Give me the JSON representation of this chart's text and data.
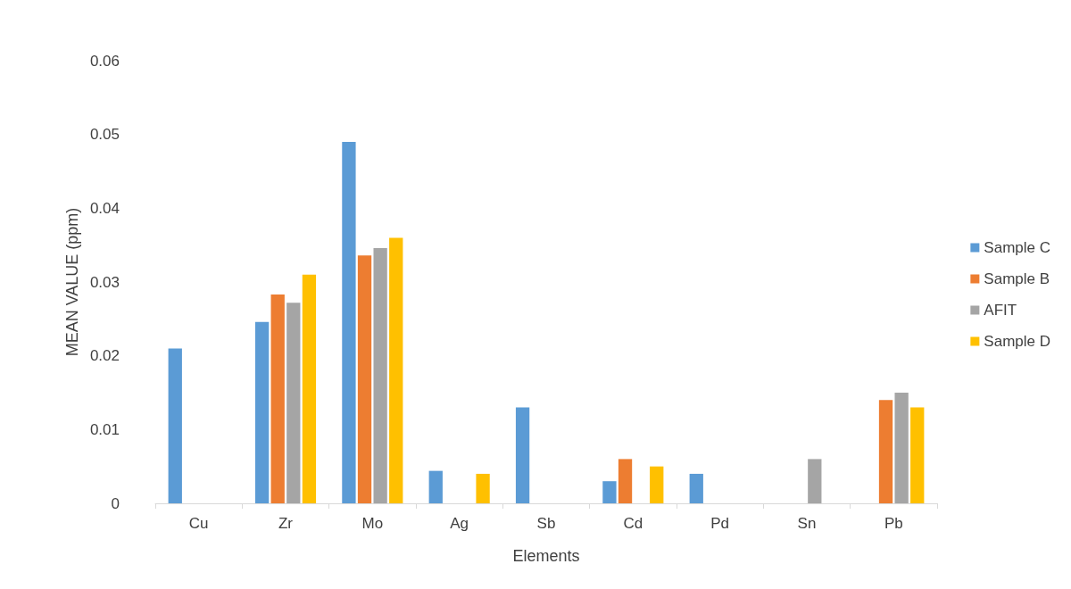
{
  "chart_data": {
    "type": "bar",
    "xlabel": "Elements",
    "ylabel": "MEAN VALUE (ppm)",
    "categories": [
      "Cu",
      "Zr",
      "Mo",
      "Ag",
      "Sb",
      "Cd",
      "Pd",
      "Sn",
      "Pb"
    ],
    "series": [
      {
        "name": "Sample C",
        "color": "#5b9bd5",
        "values": [
          0.021,
          0.0246,
          0.049,
          0.0044,
          0.013,
          0.003,
          0.004,
          null,
          null
        ]
      },
      {
        "name": "Sample B",
        "color": "#ed7d31",
        "values": [
          null,
          0.0283,
          0.0336,
          null,
          null,
          0.006,
          null,
          null,
          0.014
        ]
      },
      {
        "name": "AFIT",
        "color": "#a5a5a5",
        "values": [
          null,
          0.0272,
          0.0346,
          null,
          null,
          null,
          null,
          0.006,
          0.015
        ]
      },
      {
        "name": "Sample D",
        "color": "#ffc000",
        "values": [
          null,
          0.031,
          0.036,
          0.004,
          null,
          0.005,
          null,
          null,
          0.013
        ]
      }
    ],
    "ylim": [
      0,
      0.06
    ],
    "yticks": [
      0,
      0.01,
      0.02,
      0.03,
      0.04,
      0.05,
      0.06
    ],
    "grid": false,
    "legend": "right"
  }
}
